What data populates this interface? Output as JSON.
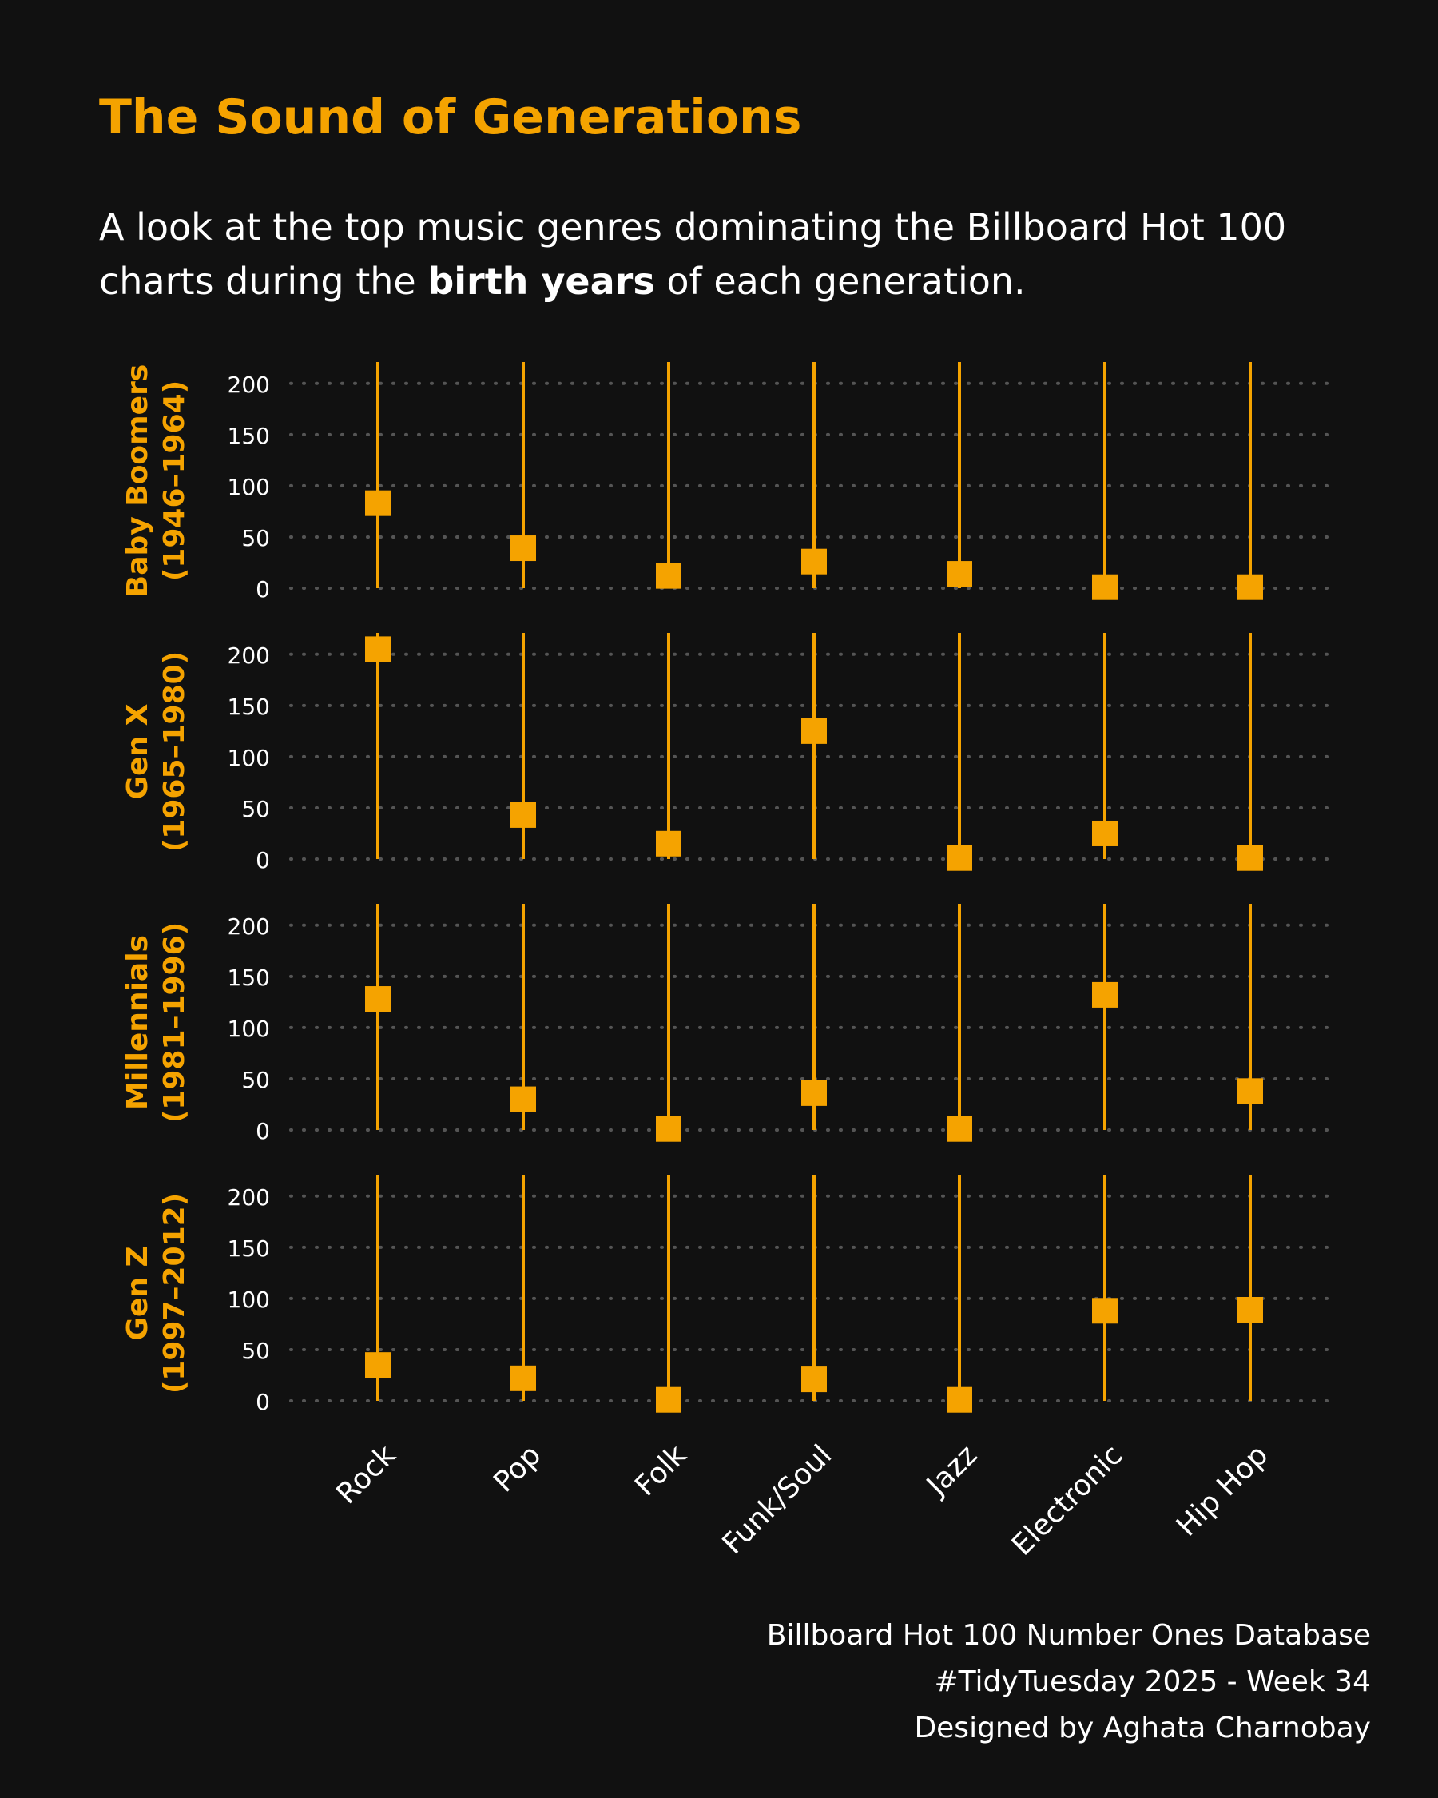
{
  "subtitle": {
    "before": "A look at the top music genres dominating the Billboard Hot 100 charts during the ",
    "bold": "birth years",
    "after": " of each generation."
  },
  "caption": {
    "line1": "Billboard Hot 100 Number Ones Database",
    "line2": "#TidyTuesday 2025 - Week 34",
    "line3": "Designed by Aghata Charnobay"
  },
  "colors": {
    "background": "#111111",
    "accent": "#F5A300",
    "text": "#FFFFFF",
    "grid": "#555555"
  },
  "chart_data": {
    "type": "lollipop",
    "title": "The Sound of Generations",
    "categories": [
      "Rock",
      "Pop",
      "Folk",
      "Funk/Soul",
      "Jazz",
      "Electronic",
      "Hip Hop"
    ],
    "ylim": [
      0,
      210
    ],
    "yticks": [
      0,
      50,
      100,
      150,
      200
    ],
    "grid": true,
    "marker": "square",
    "panels": [
      {
        "name": "Baby Boomers",
        "years": "(1946–1964)",
        "values": [
          83,
          39,
          12,
          26,
          14,
          1,
          1
        ]
      },
      {
        "name": "Gen X",
        "years": "(1965–1980)",
        "values": [
          205,
          43,
          15,
          125,
          1,
          25,
          1
        ]
      },
      {
        "name": "Millennials",
        "years": "(1981–1996)",
        "values": [
          128,
          30,
          1,
          36,
          1,
          132,
          38
        ]
      },
      {
        "name": "Gen Z",
        "years": "(1997–2012)",
        "values": [
          35,
          22,
          1,
          21,
          1,
          88,
          89
        ]
      }
    ]
  }
}
